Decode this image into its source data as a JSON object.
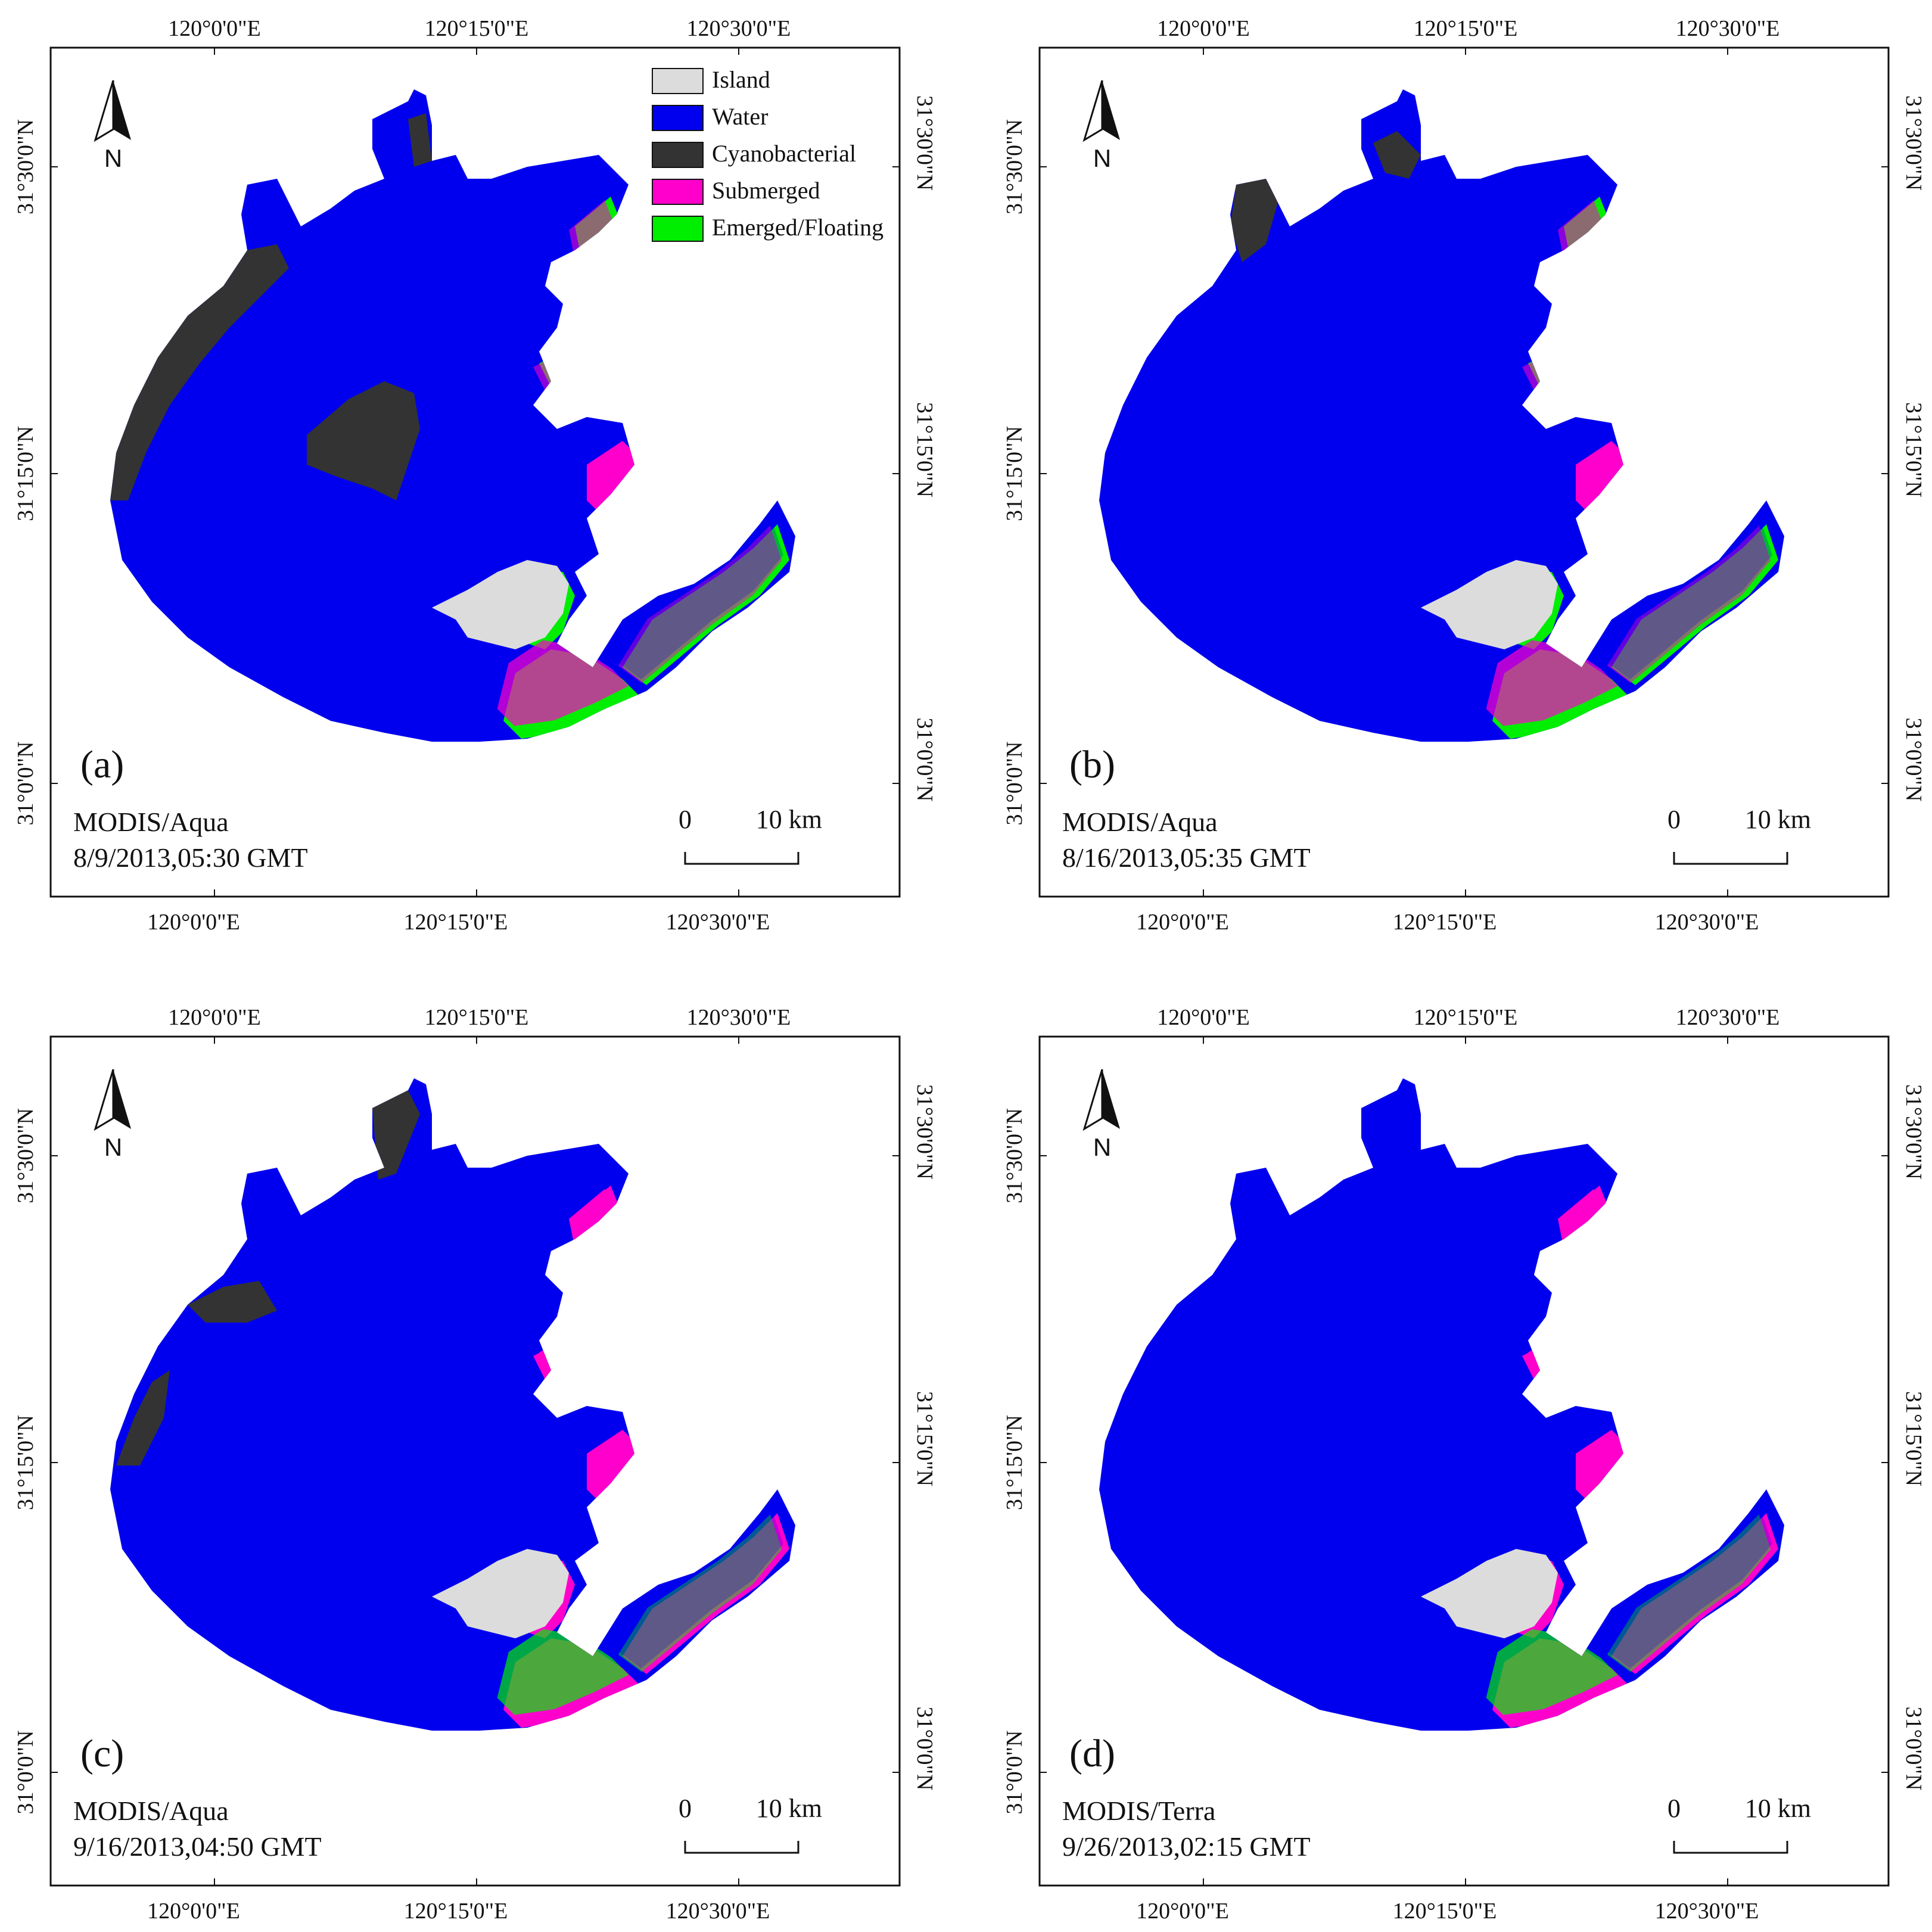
{
  "legend": {
    "items": [
      {
        "label": "Island",
        "color": "#dcdcdc"
      },
      {
        "label": "Water",
        "color": "#0000ee"
      },
      {
        "label": "Cyanobacterial",
        "color": "#333333"
      },
      {
        "label": "Submerged",
        "color": "#ff00cc"
      },
      {
        "label": "Emerged/Floating",
        "color": "#00ee00"
      }
    ]
  },
  "axes": {
    "lon_ticks": [
      "120°0'0\"E",
      "120°15'0\"E",
      "120°30'0\"E"
    ],
    "lat_ticks": [
      "31°30'0\"N",
      "31°15'0\"N",
      "31°0'0\"N"
    ]
  },
  "north_label": "N",
  "scale_bar": {
    "start": "0",
    "end": "10 km"
  },
  "panels": [
    {
      "tag": "(a)",
      "sensor": "MODIS/Aqua",
      "datetime": "8/9/2013,05:30 GMT",
      "cyano": "heavy",
      "vegetation": "mixed"
    },
    {
      "tag": "(b)",
      "sensor": "MODIS/Aqua",
      "datetime": "8/16/2013,05:35 GMT",
      "cyano": "light",
      "vegetation": "mixed"
    },
    {
      "tag": "(c)",
      "sensor": "MODIS/Aqua",
      "datetime": "9/16/2013,04:50 GMT",
      "cyano": "moderate",
      "vegetation": "submerged-dominant"
    },
    {
      "tag": "(d)",
      "sensor": "MODIS/Terra",
      "datetime": "9/26/2013,02:15 GMT",
      "cyano": "none",
      "vegetation": "submerged-dominant"
    }
  ]
}
